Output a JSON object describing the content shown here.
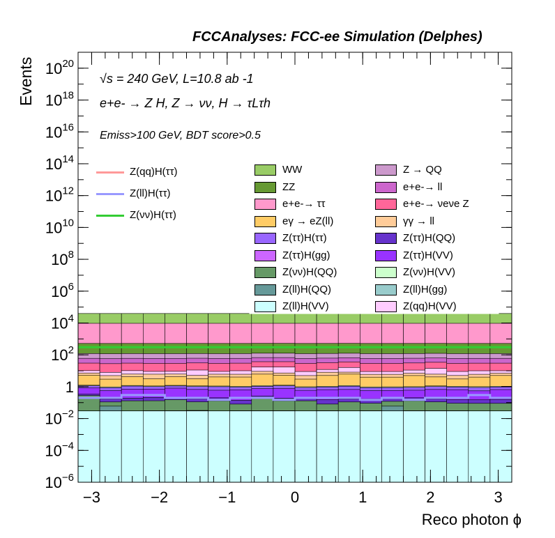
{
  "title": "FCCAnalyses: FCC-ee Simulation (Delphes)",
  "info_lines": [
    "√s = 240 GeV, L=10.8 ab -1",
    "e+e- → Z H, Z → νν, H → τLτh",
    "Emiss>100 GeV, BDT score>0.5"
  ],
  "chart_data": {
    "type": "area",
    "xlabel": "Reco photon ϕ",
    "ylabel": "Events",
    "xlim": [
      -3.2,
      3.2
    ],
    "ylim": [
      1e-06,
      1e+21
    ],
    "log_y": true,
    "bins": 20,
    "x_ticks": [
      "−3",
      "−2",
      "−1",
      "0",
      "1",
      "2",
      "3"
    ],
    "y_ticks": [
      {
        "base": "10",
        "exp": "−6",
        "v": 1e-06
      },
      {
        "base": "10",
        "exp": "−4",
        "v": 0.0001
      },
      {
        "base": "10",
        "exp": "−2",
        "v": 0.01
      },
      {
        "base": "1",
        "exp": "",
        "v": 1
      },
      {
        "base": "10",
        "exp": "2",
        "v": 100.0
      },
      {
        "base": "10",
        "exp": "4",
        "v": 10000.0
      },
      {
        "base": "10",
        "exp": "6",
        "v": 1000000.0
      },
      {
        "base": "10",
        "exp": "8",
        "v": 100000000.0
      },
      {
        "base": "10",
        "exp": "10",
        "v": 10000000000.0
      },
      {
        "base": "10",
        "exp": "12",
        "v": 1000000000000.0
      },
      {
        "base": "10",
        "exp": "14",
        "v": 100000000000000.0
      },
      {
        "base": "10",
        "exp": "16",
        "v": 1e+16
      },
      {
        "base": "10",
        "exp": "18",
        "v": 1e+18
      },
      {
        "base": "10",
        "exp": "20",
        "v": 1e+20
      }
    ],
    "stack_bottom_to_top": [
      {
        "name": "Z(ll)H(VV)",
        "color": "#ccffff",
        "values": [
          0.03,
          0.03,
          0.03,
          0.03,
          0.03,
          0.03,
          0.03,
          0.03,
          0.03,
          0.03,
          0.03,
          0.03,
          0.03,
          0.03,
          0.03,
          0.03,
          0.03,
          0.03,
          0.03,
          0.03
        ]
      },
      {
        "name": "Z(ττ)H(gg)",
        "color": "#cc66ff",
        "values": [
          0,
          0,
          0,
          0.001,
          0.001,
          0.001,
          0,
          0.0008,
          0.0008,
          0.001,
          0,
          0.001,
          0,
          0.001,
          0,
          0.001,
          0.001,
          0.001,
          0,
          0
        ]
      },
      {
        "name": "Z(ll)H(gg)",
        "color": "#99cccc",
        "values": [
          0,
          0,
          0,
          0,
          0,
          0.0008,
          0,
          0,
          0,
          0,
          0,
          0,
          0,
          0,
          0,
          0,
          0,
          0,
          0,
          0
        ]
      },
      {
        "name": "Z(ll)H(QQ)",
        "color": "#669999",
        "values": [
          0,
          0.03,
          0,
          0,
          0,
          3e-05,
          0,
          0,
          0,
          0,
          0,
          0,
          0,
          0,
          0.03,
          0,
          0,
          0,
          0,
          0
        ]
      },
      {
        "name": "Z(νν)H(QQ)",
        "color": "#669966",
        "values": [
          0.25,
          0.05,
          0.1,
          0.1,
          0.12,
          0.08,
          0.1,
          0.05,
          0.15,
          0.1,
          0.1,
          0.05,
          0.08,
          0.06,
          0.06,
          0.1,
          0.08,
          0.06,
          0.06,
          0.06
        ]
      },
      {
        "name": "Z(ττ)H(QQ)",
        "color": "#6633cc",
        "values": [
          0.06,
          0.06,
          0.06,
          0.08,
          0.06,
          0.06,
          0.07,
          0.06,
          0.08,
          0.06,
          0.06,
          0.07,
          0.06,
          0.08,
          0.06,
          0.07,
          0.06,
          0.06,
          0.06,
          0.07
        ]
      },
      {
        "name": "Z(ττ)H(VV)",
        "color": "#9933ff",
        "values": [
          0.5,
          0.4,
          0.5,
          0.5,
          0.6,
          0.5,
          0.4,
          0.5,
          0.5,
          0.6,
          0.4,
          0.5,
          0.5,
          0.4,
          0.4,
          0.4,
          0.5,
          0.5,
          0.4,
          0.5
        ]
      },
      {
        "name": "Z(ττ)H(ττ)",
        "color": "#9966ff",
        "values": [
          0.3,
          0.3,
          0.4,
          0.3,
          0.3,
          0.35,
          0.4,
          0.3,
          0.3,
          0.35,
          0.3,
          0.3,
          0.4,
          0.3,
          0.3,
          0.3,
          0.35,
          0.3,
          0.35,
          0.3
        ]
      },
      {
        "name": "Z(νν)H(VV)",
        "color": "#ccffcc",
        "values": [
          0.1,
          0.1,
          0.1,
          0.1,
          0.1,
          0.1,
          0.1,
          0.1,
          0.1,
          0.1,
          0.1,
          0.1,
          0.1,
          0.1,
          0.1,
          0.1,
          0.1,
          0.1,
          0.1,
          0.1
        ]
      },
      {
        "name": "eγ → eZ(ll)",
        "color": "#ffcc66",
        "values": [
          4,
          2,
          3,
          2,
          3,
          2,
          3,
          3,
          5,
          4,
          2,
          4,
          5,
          3,
          3,
          4,
          3,
          2,
          3,
          4
        ]
      },
      {
        "name": "γγ → ll",
        "color": "#ffcc99",
        "values": [
          2,
          2,
          2,
          3,
          2,
          2,
          2,
          2,
          3,
          2,
          2,
          3,
          2,
          2,
          2,
          2,
          2,
          2,
          2,
          2
        ]
      },
      {
        "name": "Z(qq)H(VV)",
        "color": "#ffccff",
        "values": [
          3,
          3,
          4,
          3,
          3,
          6,
          3,
          4,
          8,
          10,
          4,
          4,
          8,
          3,
          3,
          4,
          8,
          4,
          4,
          3
        ]
      },
      {
        "name": "e+e-→ νeνe Z",
        "color": "#ff6699",
        "values": [
          20,
          20,
          20,
          20,
          20,
          20,
          20,
          20,
          20,
          20,
          20,
          20,
          20,
          20,
          20,
          20,
          20,
          20,
          20,
          20
        ]
      },
      {
        "name": "e+e-→ ll",
        "color": "#cc66cc",
        "values": [
          30,
          30,
          30,
          30,
          30,
          30,
          30,
          30,
          30,
          30,
          30,
          30,
          30,
          30,
          30,
          30,
          30,
          30,
          30,
          30
        ]
      },
      {
        "name": "Z → QQ",
        "color": "#cc99cc",
        "values": [
          60,
          60,
          60,
          60,
          60,
          60,
          60,
          60,
          60,
          60,
          60,
          60,
          60,
          60,
          60,
          60,
          60,
          60,
          60,
          60
        ]
      },
      {
        "name": "ZZ",
        "color": "#669933",
        "values": [
          400,
          400,
          400,
          400,
          400,
          400,
          400,
          400,
          400,
          400,
          400,
          400,
          400,
          400,
          400,
          400,
          400,
          400,
          400,
          400
        ]
      },
      {
        "name": "e+e-→ ττ",
        "color": "#ff99cc",
        "values": [
          9000,
          9000,
          9000,
          9000,
          9000,
          9000,
          9000,
          9000,
          9000,
          9000,
          9000,
          9000,
          9000,
          9000,
          9000,
          9000,
          9000,
          9000,
          9000,
          9000
        ]
      },
      {
        "name": "WW",
        "color": "#99cc66",
        "values": [
          30000,
          30000,
          30000,
          30000,
          30000,
          30000,
          30000,
          30000,
          30000,
          30000,
          30000,
          30000,
          30000,
          30000,
          30000,
          30000,
          30000,
          30000,
          30000,
          30000
        ]
      }
    ],
    "signal_lines": [
      {
        "name": "Z(qq)H(ττ)",
        "color": "#ff9999",
        "values": [
          null,
          null,
          null,
          null,
          null,
          null,
          null,
          null,
          null,
          null,
          null,
          null,
          null,
          null,
          null,
          null,
          null,
          null,
          null,
          null
        ]
      },
      {
        "name": "Z(ll)H(ττ)",
        "color": "#9999ff",
        "values": [
          0.2,
          0.2,
          0.3,
          0.3,
          0.2,
          0.2,
          0.15,
          0.2,
          0.2,
          0.15,
          0.2,
          0.2,
          0.2,
          0.15,
          0.2,
          0.15,
          0.2,
          0.2,
          0.3,
          0.2
        ]
      },
      {
        "name": "Z(νν)H(ττ)",
        "color": "#33cc33",
        "values": [
          300,
          300,
          300,
          300,
          300,
          300,
          300,
          300,
          300,
          300,
          300,
          300,
          300,
          300,
          300,
          300,
          300,
          300,
          300,
          300
        ]
      }
    ]
  },
  "legend_lines": [
    "Z(qq)H(ττ)",
    "Z(ll)H(ττ)",
    "Z(νν)H(ττ)"
  ],
  "legend_col1": [
    "WW",
    "ZZ",
    "e+e-→ ττ",
    "eγ → eZ(ll)",
    "Z(ττ)H(ττ)",
    "Z(ττ)H(gg)",
    "Z(νν)H(QQ)",
    "Z(ll)H(QQ)",
    "Z(ll)H(VV)"
  ],
  "legend_col2": [
    "Z → QQ",
    "e+e-→ ll",
    "e+e-→ νeνe Z",
    "γγ → ll",
    "Z(ττ)H(QQ)",
    "Z(ττ)H(VV)",
    "Z(νν)H(VV)",
    "Z(ll)H(gg)",
    "Z(qq)H(VV)"
  ]
}
